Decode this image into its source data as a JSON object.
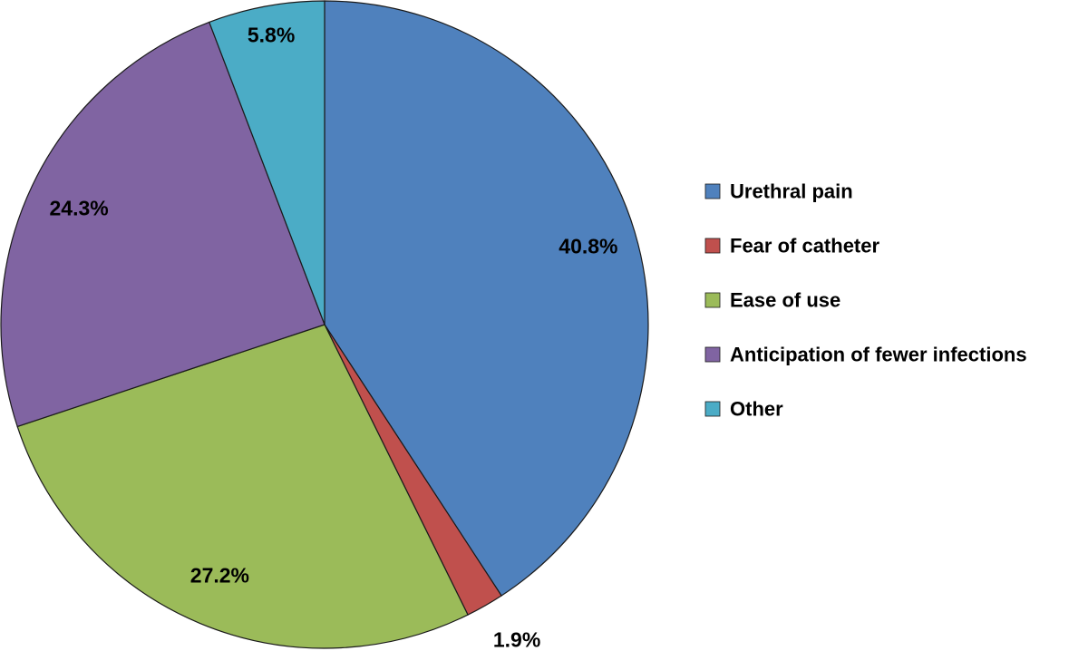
{
  "chart_data": {
    "type": "pie",
    "title": "",
    "categories": [
      "Urethral pain",
      "Fear of catheter",
      "Ease of use",
      "Anticipation of fewer infections",
      "Other"
    ],
    "values": [
      40.8,
      1.9,
      27.2,
      24.3,
      5.8
    ],
    "data_labels": [
      "40.8%",
      "1.9%",
      "27.2%",
      "24.3%",
      "5.8%"
    ],
    "colors": [
      "#4F81BD",
      "#C0504D",
      "#9BBB59",
      "#8064A2",
      "#4BACC6"
    ],
    "start_angle_deg": 0,
    "direction": "clockwise",
    "legend_position": "right"
  }
}
